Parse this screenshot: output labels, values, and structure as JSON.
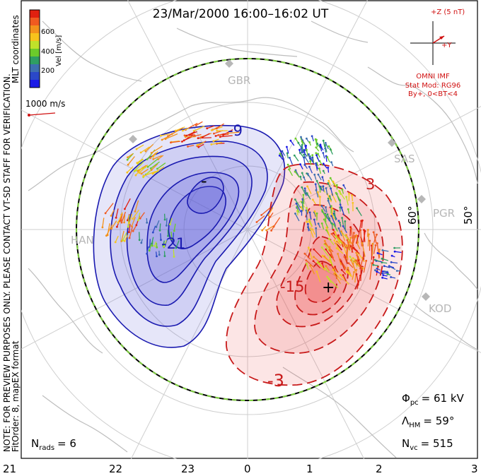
{
  "title": "23/Mar/2000 16:00–16:02 UT",
  "side_note": "NOTE: FOR PREVIEW PURPOSES ONLY. PLEASE CONTACT VT-SD STAFF FOR VERIFICATION.",
  "fit_note": "FitOrder: 8, mapEX format",
  "coords_note": "MLT coordinates",
  "colorbar": {
    "label": "Vel [m/s]",
    "ticks": [
      "600",
      "400",
      "200"
    ],
    "colors": [
      "#e02010",
      "#f05a20",
      "#f3921c",
      "#f7c31c",
      "#bfe22a",
      "#6ccb2b",
      "#2f9e63",
      "#3e6fb0",
      "#2b48c8",
      "#1a1ae6"
    ]
  },
  "vector_scale": {
    "label": "1000 m/s",
    "color": "#d01010"
  },
  "imf": {
    "z_label": "+Z (5 nT)",
    "y_label": "+Y",
    "source": "OMNI IMF",
    "model": "Stat Mod: RG96",
    "condition": "By+, 0<BT<4"
  },
  "stations": [
    "GBR",
    "SAS",
    "PGR",
    "KOD",
    "HAN"
  ],
  "latitude_labels": [
    "60°",
    "50°"
  ],
  "contour_labels": [
    "-9",
    "-21",
    "-",
    "3",
    "-15",
    "+",
    "-3"
  ],
  "stats": {
    "phi_pc": {
      "symbol": "Φ",
      "sub": "pc",
      "value": "= 61 kV"
    },
    "lambda_hm": {
      "symbol": "Λ",
      "sub": "HM",
      "value": "= 59°"
    },
    "n_vc": {
      "symbol": "N",
      "sub": "vc",
      "value": "= 515"
    },
    "n_rads": {
      "symbol": "N",
      "sub": "rads",
      "value": "= 6"
    }
  },
  "mlt_ticks": [
    "21",
    "22",
    "23",
    "0",
    "1",
    "2",
    "3"
  ],
  "colors": {
    "negative_fill": "#5656d8",
    "negative_line": "#1a1ab0",
    "positive_fill": "#ee5050",
    "positive_line": "#c81a1a",
    "grid": "#cfcfcf",
    "coast": "#bdbdbd",
    "boundary_green": "#7fd040"
  }
}
